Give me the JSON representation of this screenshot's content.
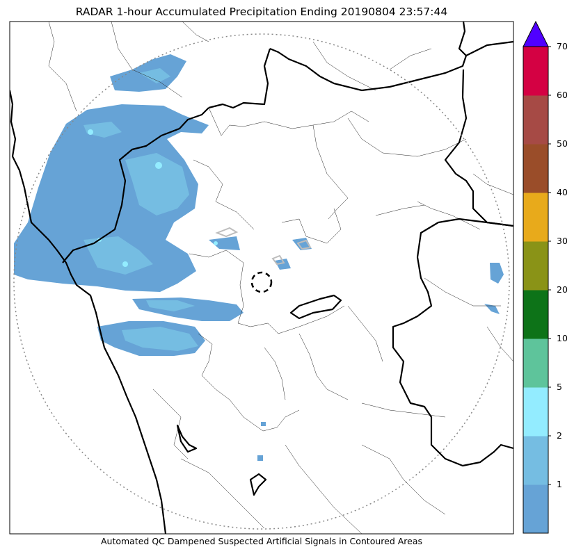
{
  "title": "RADAR 1-hour Accumulated Precipitation Ending 20190804 23:57:44",
  "footer": "Automated QC Dampened Suspected Artificial Signals in Contoured Areas",
  "colorbar": {
    "extend_color": "#5000ff",
    "bins": [
      {
        "label": "",
        "color": "#66a3d6"
      },
      {
        "label": "1",
        "color": "#75bde2"
      },
      {
        "label": "2",
        "color": "#93ecff"
      },
      {
        "label": "5",
        "color": "#5ec49b"
      },
      {
        "label": "10",
        "color": "#0d7318"
      },
      {
        "label": "20",
        "color": "#8a9317"
      },
      {
        "label": "30",
        "color": "#e8aa1b"
      },
      {
        "label": "40",
        "color": "#9a4d29"
      },
      {
        "label": "50",
        "color": "#a64a45"
      },
      {
        "label": "60",
        "color": "#d40143"
      }
    ],
    "top_label": "70"
  }
}
